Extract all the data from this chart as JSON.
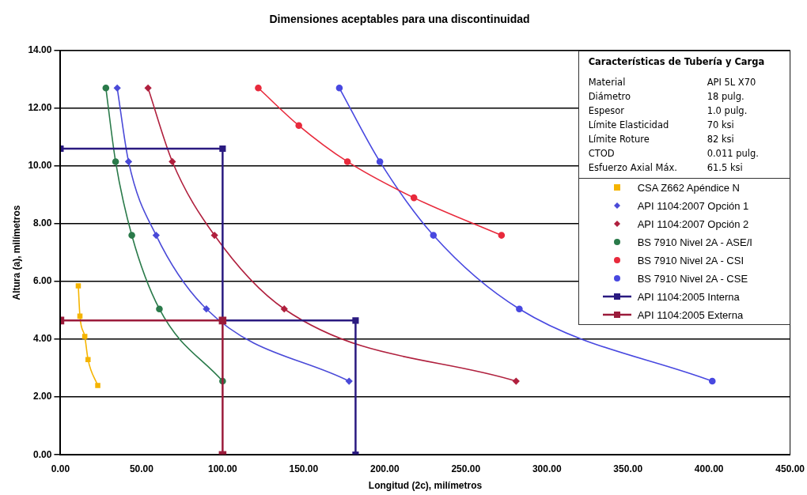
{
  "chart_data": {
    "type": "line",
    "title": "Dimensiones aceptables para una discontinuidad",
    "xlabel": "Longitud (2c), milímetros",
    "ylabel": "Altura (a), milímetros",
    "xlim": [
      0,
      450
    ],
    "xticks": [
      {
        "value": 0,
        "label": "0.00"
      },
      {
        "value": 50,
        "label": "50.00"
      },
      {
        "value": 100,
        "label": "100.00"
      },
      {
        "value": 150,
        "label": "150.00"
      },
      {
        "value": 200,
        "label": "200.00"
      },
      {
        "value": 250,
        "label": "250.00"
      },
      {
        "value": 300,
        "label": "300.00"
      },
      {
        "value": 350,
        "label": "350.00"
      },
      {
        "value": 400,
        "label": "400.00"
      },
      {
        "value": 450,
        "label": "450.00"
      }
    ],
    "ylim": [
      0,
      14
    ],
    "yticks": [
      {
        "value": 0,
        "label": "0.00"
      },
      {
        "value": 2,
        "label": "2.00"
      },
      {
        "value": 4,
        "label": "4.00"
      },
      {
        "value": 6,
        "label": "6.00"
      },
      {
        "value": 8,
        "label": "8.00"
      },
      {
        "value": 10,
        "label": "10.00"
      },
      {
        "value": 12,
        "label": "12.00"
      },
      {
        "value": 14,
        "label": "14.00"
      }
    ],
    "grid": "y",
    "legend": "top right",
    "annotations": [
      "Características de Tubería y Carga",
      "Material",
      "API 5L X70",
      "Diámetro",
      "18 pulg.",
      "Espesor",
      "1.0 pulg.",
      "Límite Elasticidad",
      "70 ksi",
      "Límite Roture",
      "82 ksi",
      "CTOD",
      "0.011  pulg.",
      "Esfuerzo Axial Máx.",
      "61.5 ksi"
    ],
    "series": [
      {
        "name": "CSA Z662  Apéndice N",
        "color": "#f5b400",
        "marker": "square",
        "x": [
          11,
          12,
          15,
          17,
          23
        ],
        "values": [
          5.85,
          4.8,
          4.1,
          3.3,
          2.4
        ]
      },
      {
        "name": "API 1104:2007  Opción 1",
        "color": "#4a4ad8",
        "marker": "diamond",
        "x": [
          35,
          42,
          59,
          90,
          178
        ],
        "values": [
          12.7,
          10.15,
          7.6,
          5.05,
          2.55
        ]
      },
      {
        "name": "API 1104:2007  Opción 2",
        "color": "#b0203e",
        "marker": "diamond",
        "x": [
          54,
          69,
          95,
          138,
          281
        ],
        "values": [
          12.7,
          10.15,
          7.6,
          5.05,
          2.55
        ]
      },
      {
        "name": "BS 7910 Nivel 2A - ASE/I",
        "color": "#2a7a4a",
        "marker": "circle",
        "x": [
          28,
          34,
          44,
          61,
          100
        ],
        "values": [
          12.7,
          10.15,
          7.6,
          5.05,
          2.55
        ]
      },
      {
        "name": "BS 7910 Nivel 2A - CSI",
        "color": "#e82a3c",
        "marker": "circle",
        "x": [
          122,
          147,
          177,
          218,
          272
        ],
        "values": [
          12.7,
          11.4,
          10.15,
          8.9,
          7.6
        ]
      },
      {
        "name": "BS 7910 Nivel 2A - CSE",
        "color": "#4848e0",
        "marker": "circle",
        "x": [
          172,
          197,
          230,
          283,
          402
        ],
        "values": [
          12.7,
          10.15,
          7.6,
          5.05,
          2.55
        ]
      },
      {
        "name": "API 1104:2005  Interna",
        "color": "#2a1a80",
        "marker": "square",
        "x": [
          0,
          100,
          100,
          182,
          182
        ],
        "values": [
          10.6,
          10.6,
          4.65,
          4.65,
          0
        ]
      },
      {
        "name": "API 1104:2005  Externa",
        "color": "#9b1b3b",
        "marker": "square",
        "x": [
          0,
          100,
          100
        ],
        "values": [
          4.65,
          4.65,
          0
        ]
      }
    ]
  }
}
